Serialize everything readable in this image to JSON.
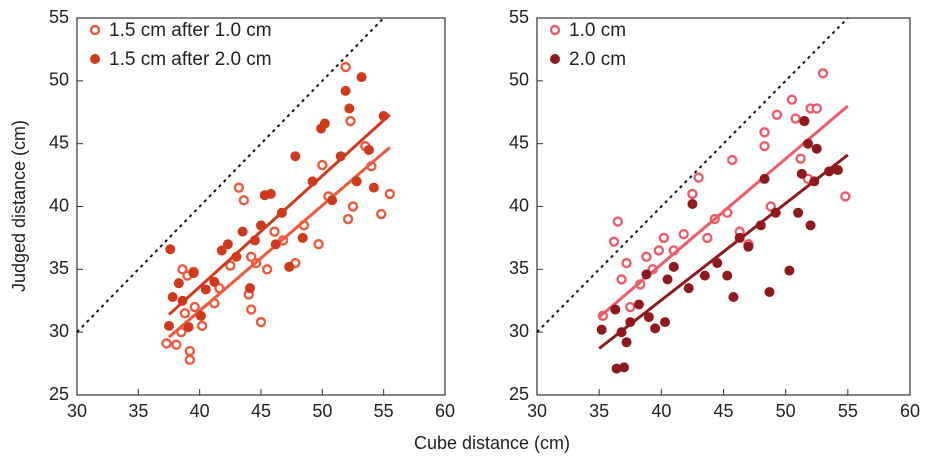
{
  "chart_data": [
    {
      "type": "scatter",
      "xlabel": "Cube distance (cm)",
      "ylabel": "Judged distance (cm)",
      "xlim": [
        30,
        60
      ],
      "ylim": [
        25,
        55
      ],
      "xticks": [
        30,
        35,
        40,
        45,
        50,
        55,
        60
      ],
      "yticks": [
        25,
        30,
        35,
        40,
        45,
        50,
        55
      ],
      "identity_line": {
        "x": [
          30,
          55
        ],
        "values": [
          30,
          55
        ]
      },
      "legend": "upper-left",
      "series": [
        {
          "name": "1.5 cm after 1.0 cm",
          "color": "#ee5a3c",
          "marker": "open",
          "x": [
            37.3,
            38.1,
            38.5,
            38.8,
            39.2,
            39.2,
            38.6,
            39.5,
            39.6,
            40.2,
            41.2,
            41.6,
            42.5,
            43.2,
            43.6,
            44.0,
            44.2,
            44.6,
            45.0,
            45.5,
            46.1,
            46.8,
            47.8,
            48.5,
            49.7,
            50.0,
            50.5,
            51.9,
            52.1,
            52.3,
            52.5,
            53.5,
            54.0,
            54.8,
            55.5,
            44.2,
            39.0
          ],
          "values": [
            29.1,
            29.0,
            30.0,
            31.5,
            28.5,
            27.8,
            35.0,
            34.8,
            32.0,
            30.5,
            32.3,
            33.5,
            35.3,
            41.5,
            40.5,
            33.0,
            31.8,
            35.5,
            30.8,
            35.0,
            38.0,
            37.3,
            35.5,
            38.5,
            37.0,
            43.3,
            40.8,
            51.1,
            39.0,
            46.8,
            40.0,
            44.8,
            43.2,
            39.4,
            41.0,
            36.0,
            34.5
          ],
          "fit": {
            "x": [
              37.5,
              55.5
            ],
            "values": [
              29.6,
              44.7
            ]
          }
        },
        {
          "name": "1.5 cm after 2.0 cm",
          "color": "#cf3a1c",
          "marker": "filled",
          "x": [
            37.6,
            37.5,
            37.8,
            38.3,
            38.6,
            39.1,
            39.5,
            40.1,
            40.5,
            41.2,
            41.8,
            42.3,
            43.0,
            43.5,
            44.1,
            44.5,
            45.0,
            45.3,
            45.8,
            46.2,
            46.7,
            47.3,
            47.8,
            48.4,
            49.2,
            49.9,
            50.2,
            50.8,
            51.5,
            51.9,
            52.2,
            52.8,
            53.2,
            54.2,
            55.0,
            53.8
          ],
          "values": [
            36.6,
            30.5,
            32.8,
            33.9,
            32.5,
            30.4,
            34.7,
            31.3,
            33.4,
            34.0,
            36.5,
            37.0,
            36.0,
            38.0,
            33.5,
            37.3,
            38.5,
            40.9,
            41.0,
            37.0,
            39.5,
            35.2,
            44.0,
            37.5,
            42.0,
            46.2,
            46.6,
            40.5,
            44.0,
            49.2,
            47.8,
            42.0,
            50.3,
            41.5,
            47.2,
            44.5
          ],
          "fit": {
            "x": [
              37.5,
              55.5
            ],
            "values": [
              31.4,
              47.3
            ]
          }
        }
      ]
    },
    {
      "type": "scatter",
      "xlim": [
        30,
        60
      ],
      "ylim": [
        25,
        55
      ],
      "xticks": [
        30,
        35,
        40,
        45,
        50,
        55,
        60
      ],
      "yticks": [
        25,
        30,
        35,
        40,
        45,
        50,
        55
      ],
      "identity_line": {
        "x": [
          30,
          55
        ],
        "values": [
          30,
          55
        ]
      },
      "legend": "upper-left",
      "series": [
        {
          "name": "1.0 cm",
          "color": "#ee5c6c",
          "marker": "open",
          "x": [
            35.3,
            36.2,
            36.5,
            36.8,
            37.2,
            37.5,
            38.3,
            38.8,
            39.3,
            39.8,
            40.2,
            41.0,
            41.8,
            42.5,
            43.0,
            43.7,
            44.3,
            45.3,
            45.7,
            46.3,
            47.0,
            48.3,
            48.3,
            48.8,
            49.3,
            50.5,
            50.8,
            51.2,
            51.5,
            52.0,
            52.5,
            51.8,
            53.0,
            54.8
          ],
          "values": [
            31.3,
            37.2,
            38.8,
            34.2,
            35.5,
            32.0,
            33.8,
            36.0,
            35.0,
            36.5,
            37.5,
            36.5,
            37.8,
            41.0,
            42.3,
            37.5,
            39.0,
            39.5,
            43.7,
            38.0,
            37.0,
            44.8,
            45.9,
            40.0,
            47.3,
            48.5,
            47.0,
            43.8,
            46.8,
            47.8,
            47.8,
            42.2,
            50.6,
            40.8
          ],
          "fit": {
            "x": [
              35,
              55
            ],
            "values": [
              31.2,
              48.0
            ]
          }
        },
        {
          "name": "2.0 cm",
          "color": "#8e1a1e",
          "marker": "filled",
          "x": [
            35.2,
            36.3,
            36.8,
            36.4,
            37.0,
            37.2,
            37.5,
            38.2,
            38.8,
            39.0,
            39.5,
            40.3,
            40.5,
            41.0,
            42.5,
            42.2,
            43.5,
            44.5,
            45.3,
            45.8,
            46.3,
            47.0,
            48.0,
            48.7,
            48.3,
            49.2,
            50.3,
            51.0,
            51.3,
            51.5,
            51.8,
            52.3,
            52.5,
            53.5,
            54.2,
            52.0
          ],
          "values": [
            30.2,
            31.8,
            30.0,
            27.1,
            27.2,
            29.2,
            30.8,
            32.2,
            34.6,
            31.2,
            30.3,
            30.8,
            34.2,
            35.2,
            40.2,
            33.5,
            34.5,
            35.5,
            34.5,
            32.8,
            37.5,
            36.8,
            38.5,
            33.2,
            42.2,
            39.5,
            34.9,
            39.5,
            42.6,
            46.8,
            45.0,
            42.0,
            44.6,
            42.8,
            42.9,
            38.5
          ],
          "fit": {
            "x": [
              35,
              55
            ],
            "values": [
              28.7,
              44.1
            ]
          }
        }
      ]
    }
  ]
}
